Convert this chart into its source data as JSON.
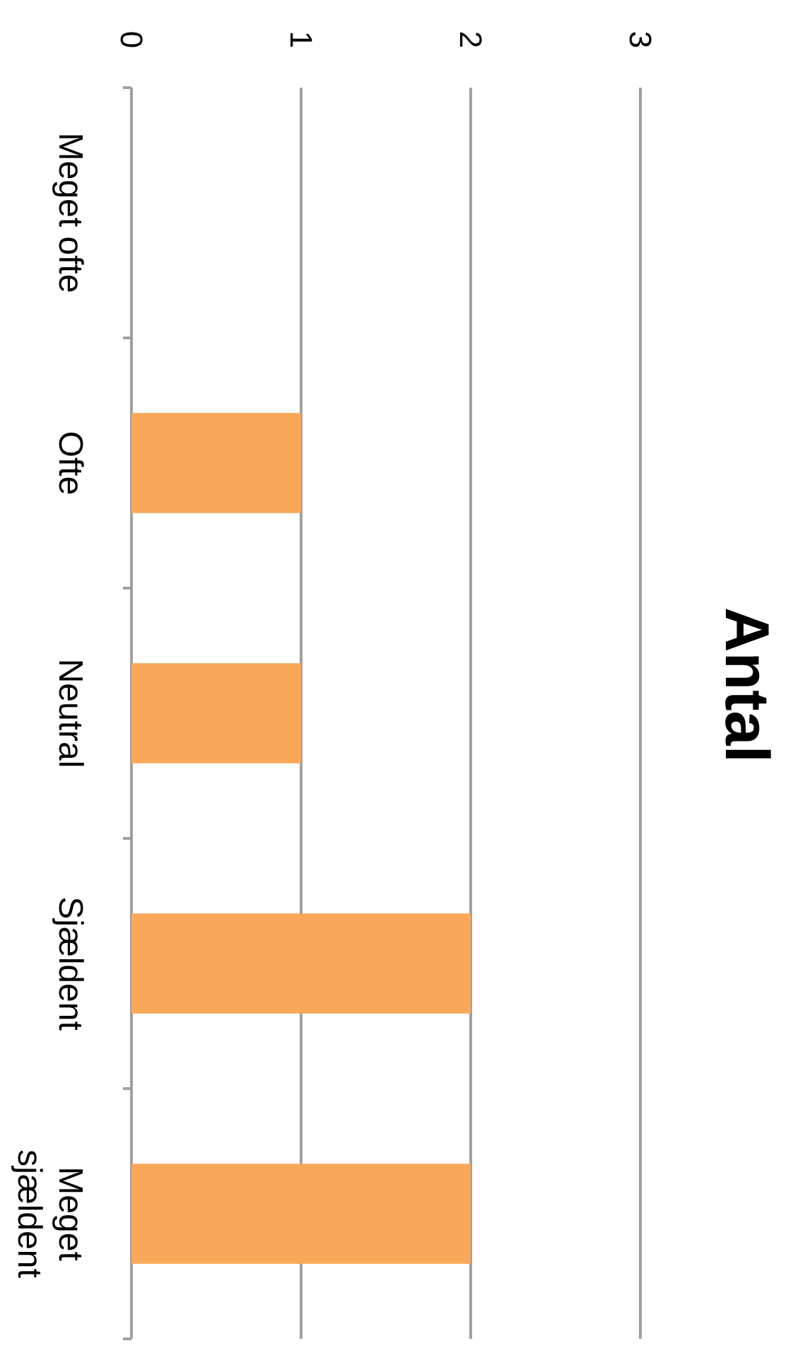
{
  "chart_data": {
    "type": "bar",
    "title": "Antal",
    "orientation": "horizontal",
    "categories": [
      "Meget ofte",
      "Ofte",
      "Neutral",
      "Sjældent",
      "Meget sjældent"
    ],
    "values": [
      0,
      1,
      1,
      2,
      2
    ],
    "color": "#f9a85a",
    "xlim": [
      0,
      3
    ],
    "xticks": [
      0,
      1,
      2,
      3
    ],
    "grid": "x"
  }
}
